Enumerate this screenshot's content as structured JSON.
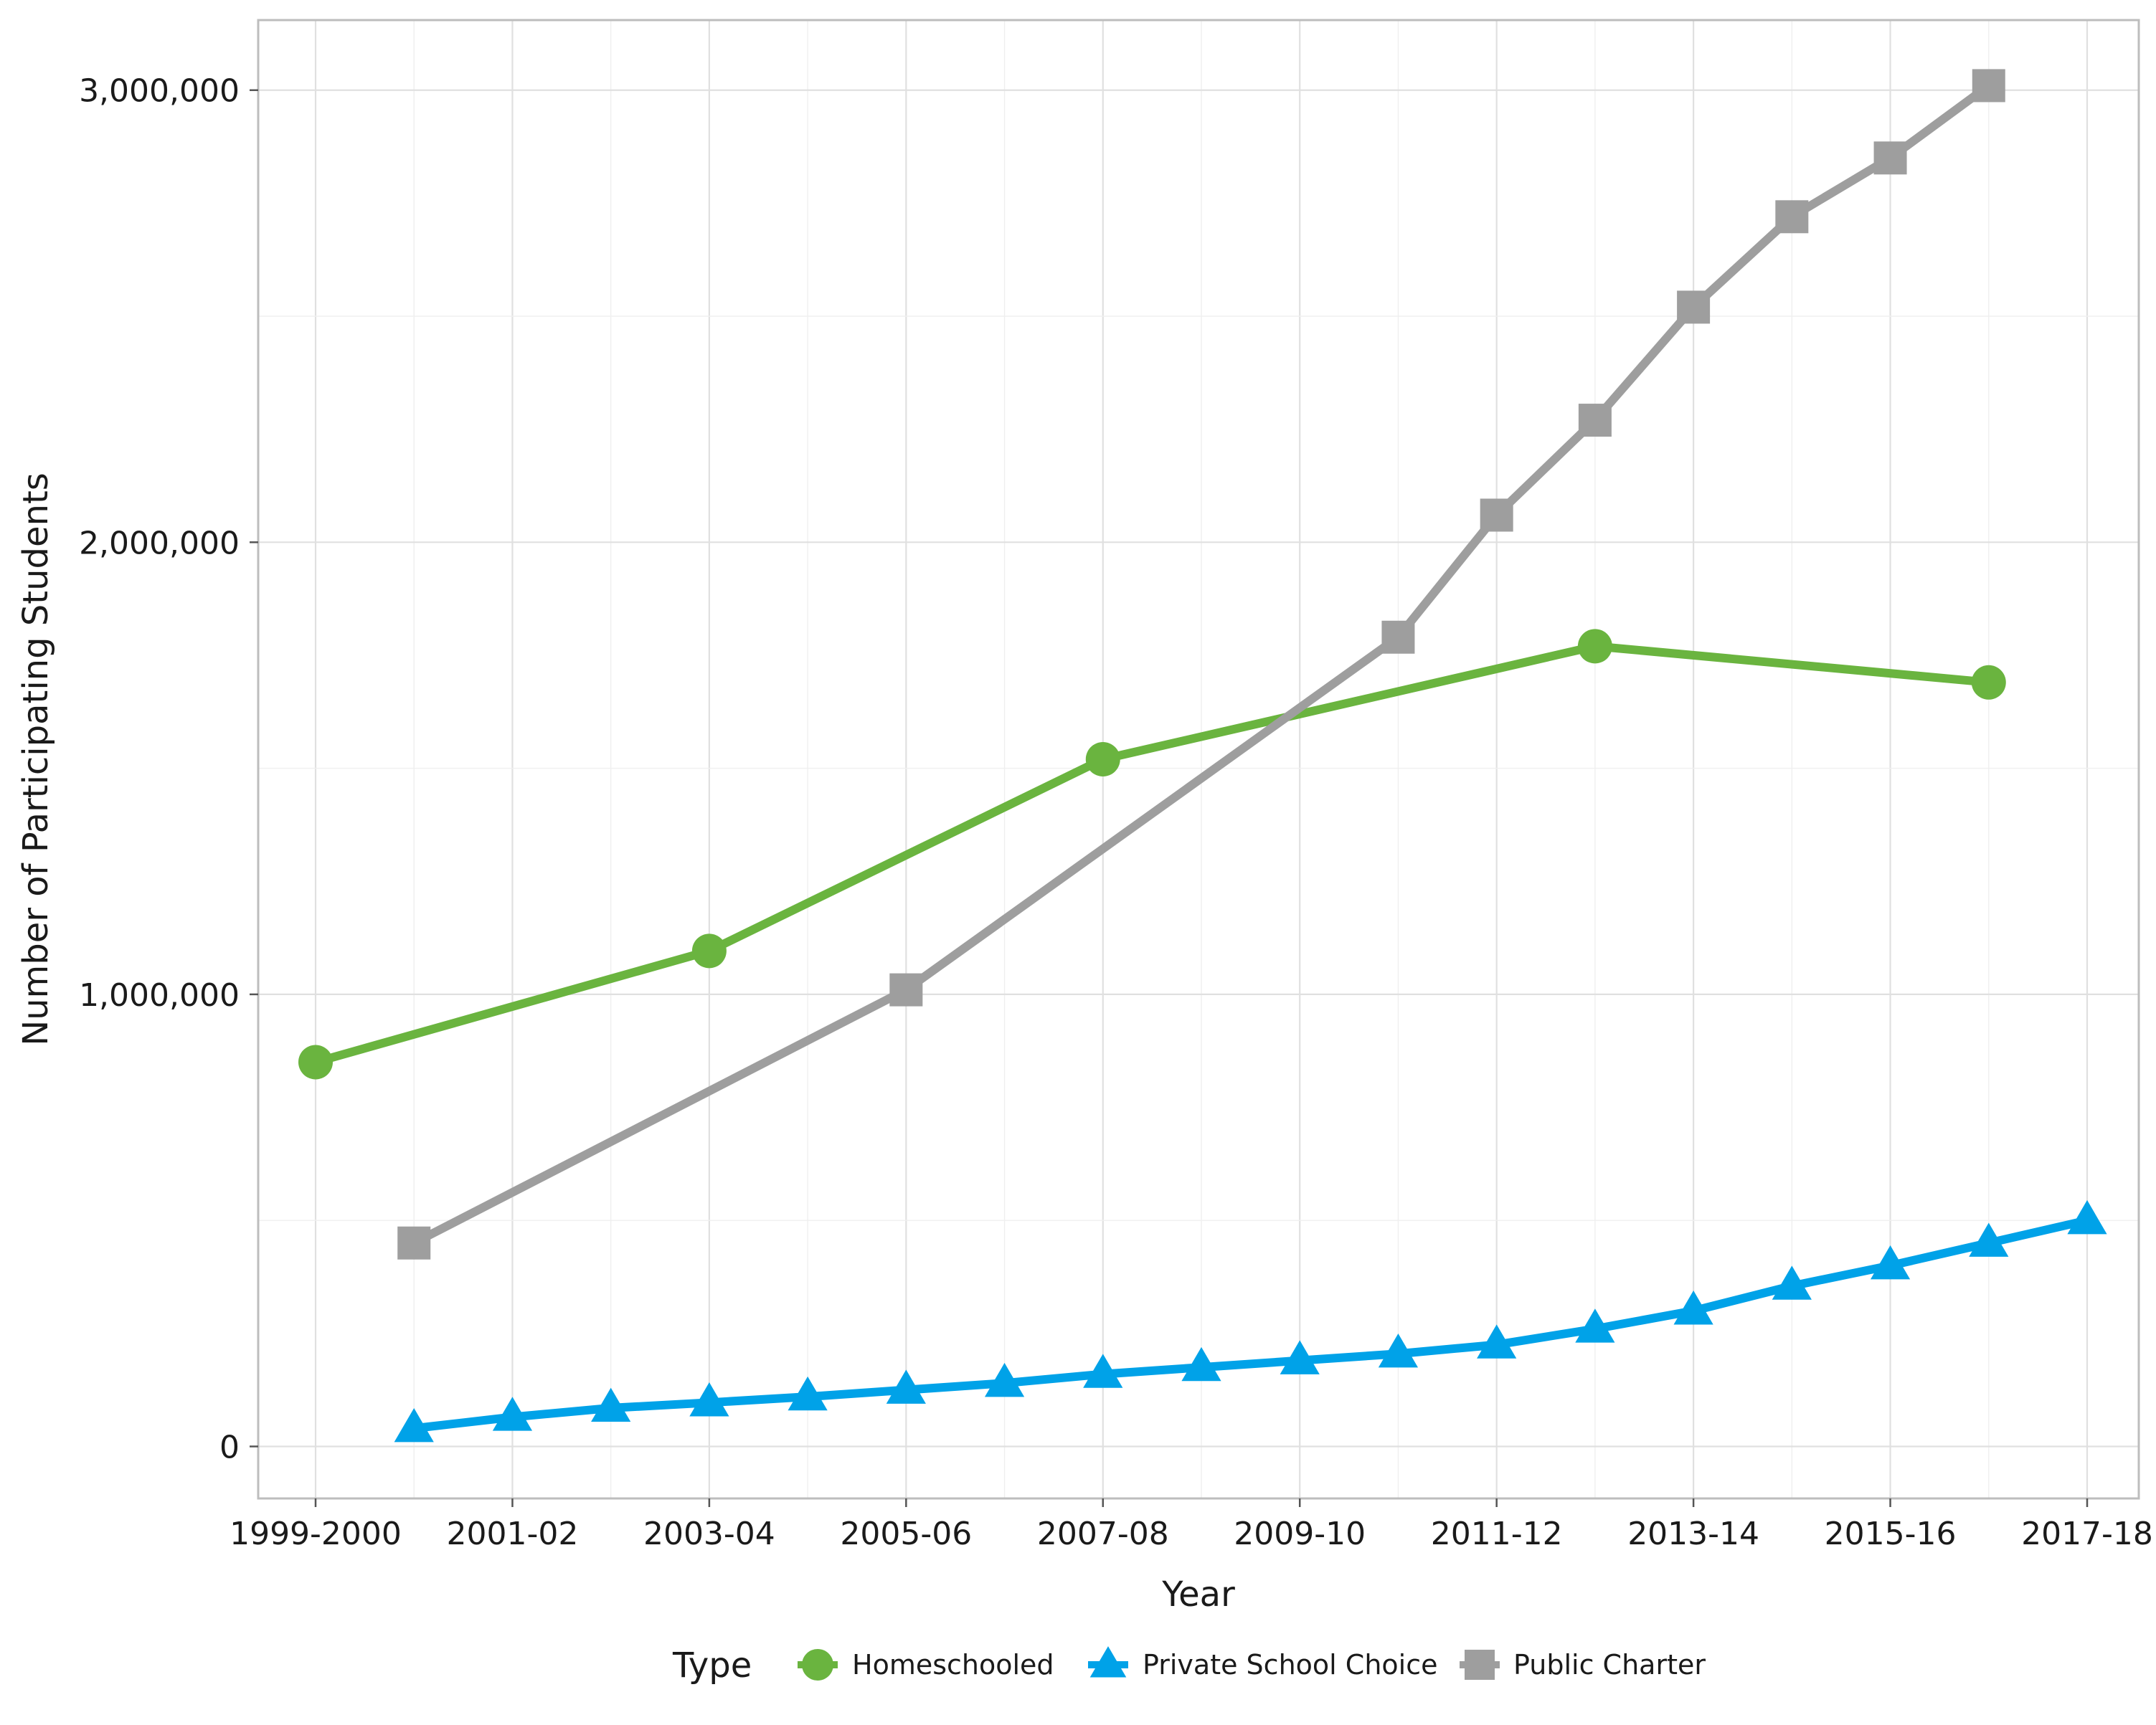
{
  "chart_data": {
    "type": "line",
    "title": "",
    "xlabel": "Year",
    "ylabel": "Number of Participating Students",
    "categories": [
      "1999-2000",
      "2000-01",
      "2001-02",
      "2002-03",
      "2003-04",
      "2004-05",
      "2005-06",
      "2006-07",
      "2007-08",
      "2008-09",
      "2009-10",
      "2010-11",
      "2011-12",
      "2012-13",
      "2013-14",
      "2014-15",
      "2015-16",
      "2016-17",
      "2017-18"
    ],
    "x_tick_labels": [
      "1999-2000",
      "2001-02",
      "2003-04",
      "2005-06",
      "2007-08",
      "2009-10",
      "2011-12",
      "2013-14",
      "2015-16",
      "2017-18"
    ],
    "y_tick_values": [
      0,
      1000000,
      2000000,
      3000000
    ],
    "y_tick_labels": [
      "0",
      "1,000,000",
      "2,000,000",
      "3,000,000"
    ],
    "ylim": [
      -115000,
      3155000
    ],
    "grid": true,
    "legend_title": "Type",
    "legend_position": "bottom",
    "series": [
      {
        "name": "Homeschooled",
        "color": "#6ab43f",
        "marker": "circle",
        "points": [
          {
            "x": "1999-2000",
            "y": 850000
          },
          {
            "x": "2003-04",
            "y": 1096000
          },
          {
            "x": "2007-08",
            "y": 1520000
          },
          {
            "x": "2012-13",
            "y": 1770000
          },
          {
            "x": "2016-17",
            "y": 1690000
          }
        ]
      },
      {
        "name": "Private School Choice",
        "color": "#00a2e8",
        "marker": "triangle",
        "points": [
          {
            "x": "2000-01",
            "y": 40000
          },
          {
            "x": "2001-02",
            "y": 65000
          },
          {
            "x": "2002-03",
            "y": 85000
          },
          {
            "x": "2003-04",
            "y": 97000
          },
          {
            "x": "2004-05",
            "y": 110000
          },
          {
            "x": "2005-06",
            "y": 125000
          },
          {
            "x": "2006-07",
            "y": 140000
          },
          {
            "x": "2007-08",
            "y": 160000
          },
          {
            "x": "2008-09",
            "y": 175000
          },
          {
            "x": "2009-10",
            "y": 190000
          },
          {
            "x": "2010-11",
            "y": 205000
          },
          {
            "x": "2011-12",
            "y": 225000
          },
          {
            "x": "2012-13",
            "y": 260000
          },
          {
            "x": "2013-14",
            "y": 300000
          },
          {
            "x": "2014-15",
            "y": 355000
          },
          {
            "x": "2015-16",
            "y": 400000
          },
          {
            "x": "2016-17",
            "y": 450000
          },
          {
            "x": "2017-18",
            "y": 500000
          }
        ]
      },
      {
        "name": "Public Charter",
        "color": "#9e9e9e",
        "marker": "square",
        "points": [
          {
            "x": "2000-01",
            "y": 450000
          },
          {
            "x": "2005-06",
            "y": 1010000
          },
          {
            "x": "2010-11",
            "y": 1790000
          },
          {
            "x": "2011-12",
            "y": 2060000
          },
          {
            "x": "2012-13",
            "y": 2270000
          },
          {
            "x": "2013-14",
            "y": 2520000
          },
          {
            "x": "2014-15",
            "y": 2720000
          },
          {
            "x": "2015-16",
            "y": 2850000
          },
          {
            "x": "2016-17",
            "y": 3010000
          }
        ]
      }
    ]
  }
}
